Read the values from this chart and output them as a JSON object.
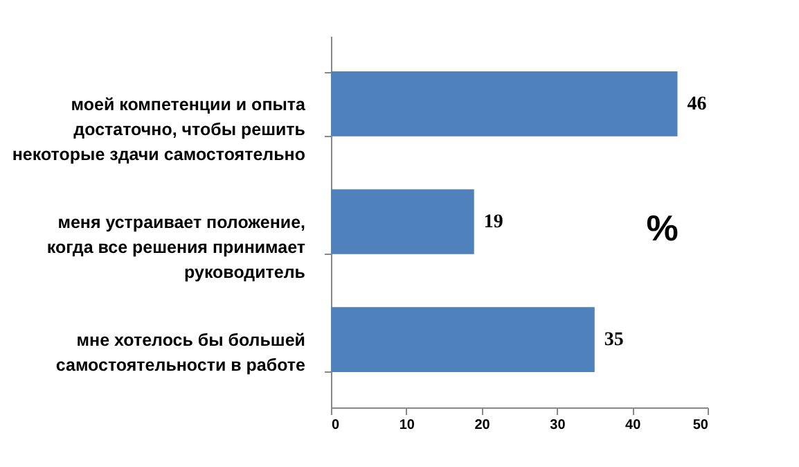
{
  "chart_data": {
    "type": "bar",
    "orientation": "horizontal",
    "categories": [
      "моей компетенции и опыта достаточно, чтобы решить некоторые здачи самостоятельно",
      "меня устраивает положение, когда все решения принимает руководитель",
      "мне хотелось бы большей самостоятельности в работе"
    ],
    "values": [
      46,
      19,
      35
    ],
    "color": "#4f81bd",
    "data_labels": true,
    "xlim": [
      0,
      50
    ],
    "xticks": [
      0,
      10,
      20,
      30,
      40,
      50
    ],
    "grid": false,
    "annotations": [
      "%"
    ]
  }
}
